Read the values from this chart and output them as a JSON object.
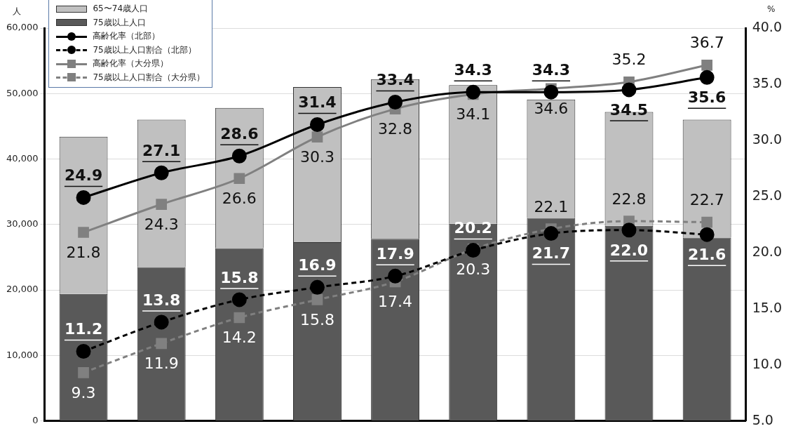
{
  "chart_data": {
    "type": "bar",
    "stacked": true,
    "ylabel": "人",
    "y2label": "%",
    "categories": [
      null,
      null,
      null,
      null,
      null,
      null,
      null,
      null,
      null
    ],
    "ylim": [
      0,
      60000
    ],
    "yticks": [
      {
        "value": 0,
        "label": "0"
      },
      {
        "value": 10000,
        "label": "10,000"
      },
      {
        "value": 20000,
        "label": "20,000"
      },
      {
        "value": 30000,
        "label": "30,000"
      },
      {
        "value": 40000,
        "label": "40,000"
      },
      {
        "value": 50000,
        "label": "50,000"
      },
      {
        "value": 60000,
        "label": "60,000"
      }
    ],
    "y2lim": [
      5,
      40
    ],
    "y2ticks": [
      {
        "value": 5,
        "label": "5.0"
      },
      {
        "value": 10,
        "label": "10.0"
      },
      {
        "value": 15,
        "label": "15.0"
      },
      {
        "value": 20,
        "label": "20.0"
      },
      {
        "value": 25,
        "label": "25.0"
      },
      {
        "value": 30,
        "label": "30.0"
      },
      {
        "value": 35,
        "label": "35.0"
      },
      {
        "value": 40,
        "label": "40.0"
      }
    ],
    "grid": "y",
    "legend": "top left",
    "series": [
      {
        "name": "75歳以上人口",
        "color": "#595959",
        "values": [
          19400,
          23500,
          26400,
          27300,
          27800,
          30100,
          31000,
          29800,
          28000
        ]
      },
      {
        "name": "65〜74歳人口",
        "color": "#c0c0c0",
        "values": [
          24000,
          22500,
          21400,
          23700,
          24400,
          21200,
          18100,
          17400,
          18000
        ]
      },
      {
        "name": "高齢化率（北部）",
        "type": "line",
        "axis": "y2",
        "color": "#000000",
        "marker": "circle",
        "line_style": "solid",
        "values": [
          24.9,
          27.1,
          28.6,
          31.4,
          33.4,
          34.3,
          34.3,
          34.5,
          35.6
        ],
        "value_labels": [
          "24.9",
          "27.1",
          "28.6",
          "31.4",
          "33.4",
          "34.3",
          "34.3",
          "34.5",
          "35.6"
        ]
      },
      {
        "name": "75歳以上人口割合（北部）",
        "type": "line",
        "axis": "y2",
        "color": "#000000",
        "marker": "circle",
        "line_style": "dashed",
        "values": [
          11.2,
          13.8,
          15.8,
          16.9,
          17.9,
          20.2,
          21.7,
          22.0,
          21.6
        ],
        "value_labels": [
          "11.2",
          "13.8",
          "15.8",
          "16.9",
          "17.9",
          "20.2",
          "21.7",
          "22.0",
          "21.6"
        ]
      },
      {
        "name": "高齢化率（大分県）",
        "type": "line",
        "axis": "y2",
        "color": "#808080",
        "marker": "square",
        "line_style": "solid",
        "values": [
          21.8,
          24.3,
          26.6,
          30.3,
          32.8,
          34.1,
          34.6,
          35.2,
          36.7
        ],
        "value_labels": [
          "21.8",
          "24.3",
          "26.6",
          "30.3",
          "32.8",
          "34.1",
          "34.6",
          "35.2",
          "36.7"
        ]
      },
      {
        "name": "75歳以上人口割合（大分県）",
        "type": "line",
        "axis": "y2",
        "color": "#808080",
        "marker": "square",
        "line_style": "dashed",
        "values": [
          9.3,
          11.9,
          14.2,
          15.8,
          17.4,
          20.3,
          22.1,
          22.8,
          22.7
        ],
        "value_labels": [
          "9.3",
          "11.9",
          "14.2",
          "15.8",
          "17.4",
          "20.3",
          "22.1",
          "22.8",
          "22.7"
        ]
      }
    ]
  }
}
